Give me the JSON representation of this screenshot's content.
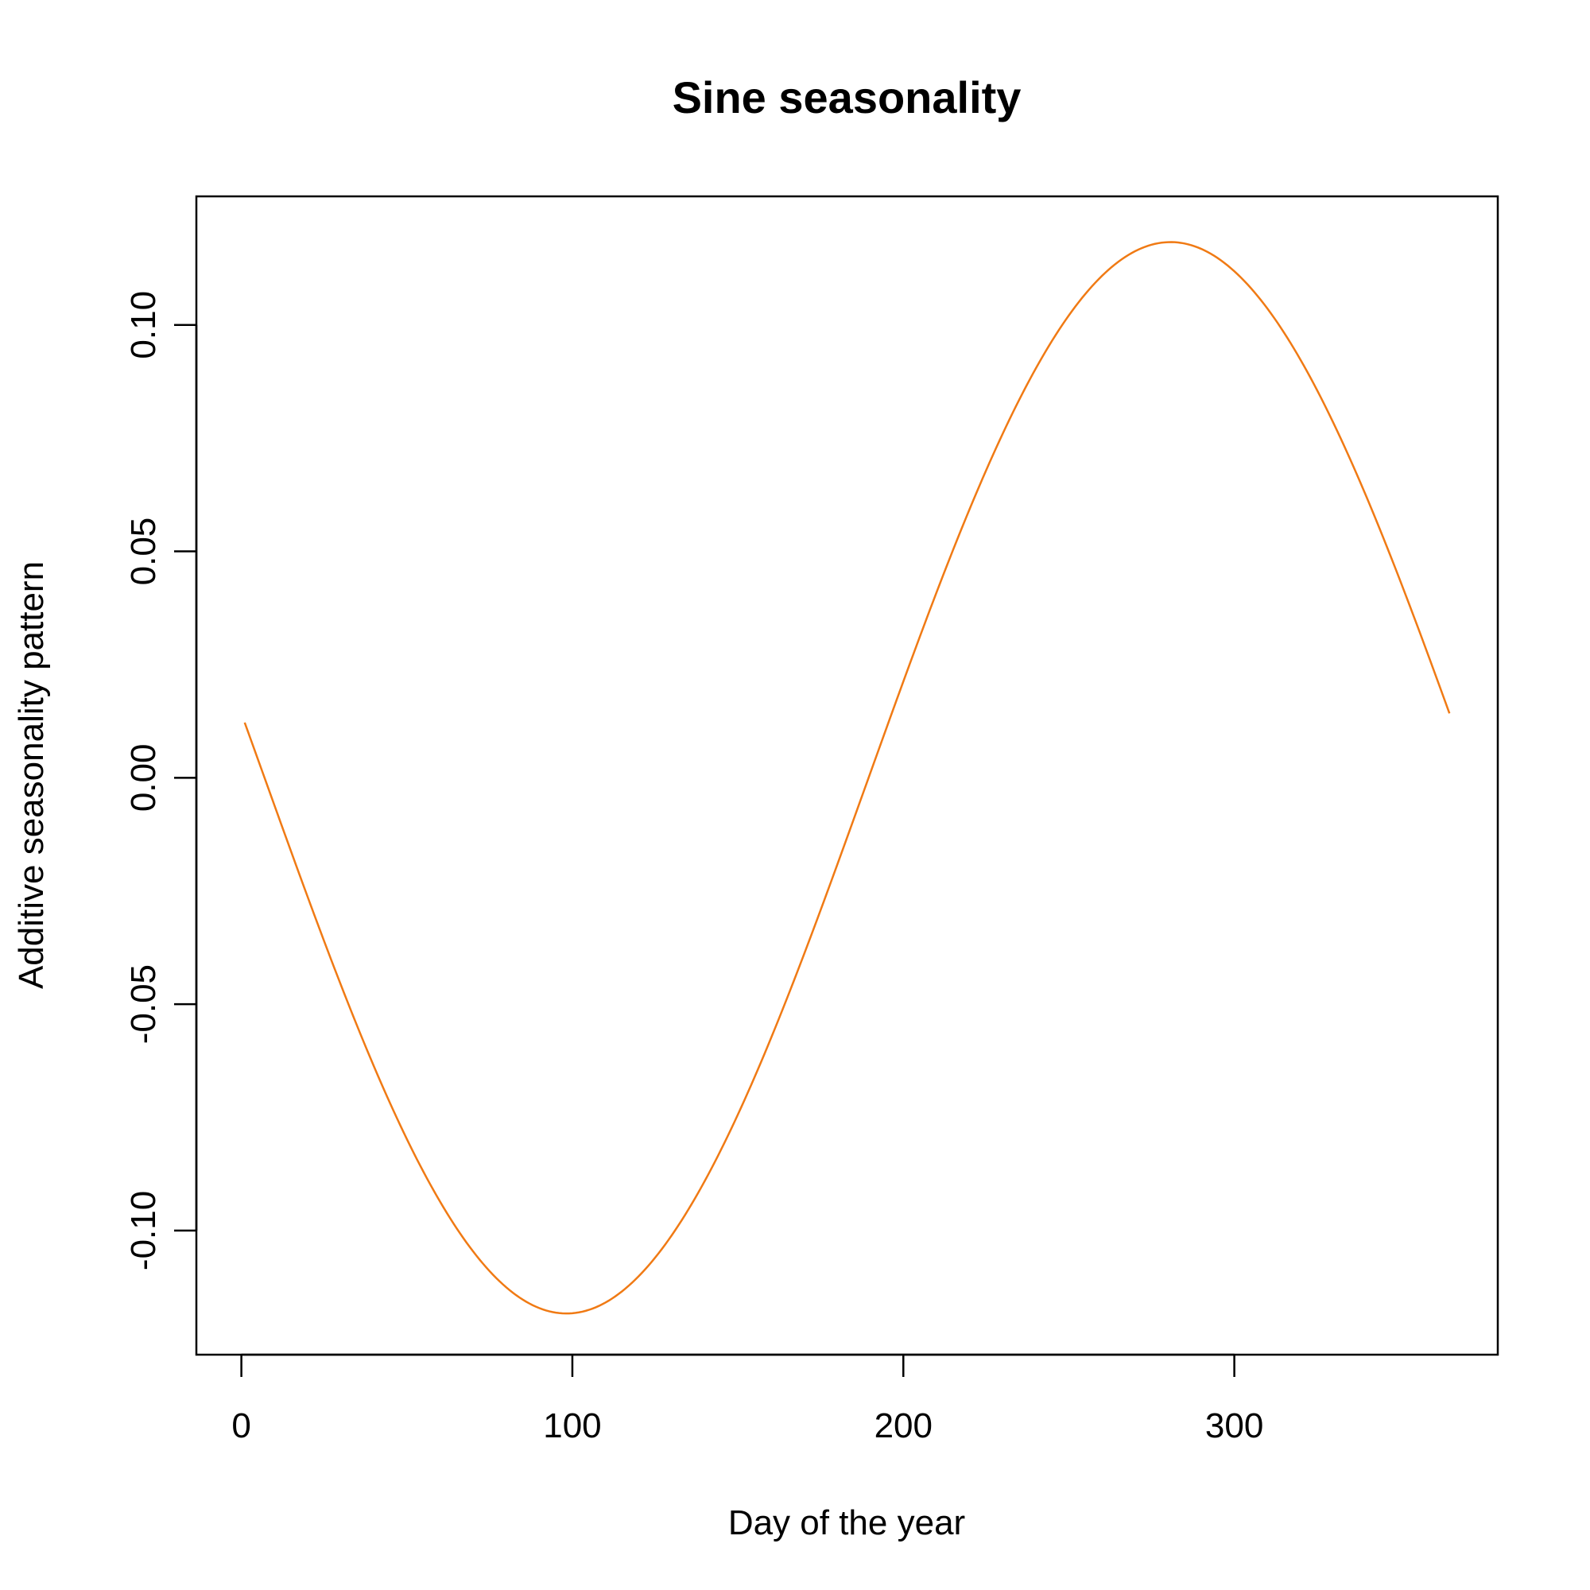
{
  "chart_data": {
    "type": "line",
    "title": "Sine seasonality",
    "xlabel": "Day of the year",
    "ylabel": "Additive seasonality pattern",
    "xlim": [
      -13.6,
      379.6
    ],
    "ylim": [
      -0.1274,
      0.1284
    ],
    "x_ticks": [
      0,
      100,
      200,
      300
    ],
    "x_tick_labels": [
      "0",
      "100",
      "200",
      "300"
    ],
    "y_ticks": [
      -0.1,
      -0.05,
      0.0,
      0.05,
      0.1
    ],
    "y_tick_labels": [
      "-0.10",
      "-0.05",
      "0.00",
      "0.05",
      "0.10"
    ],
    "grid": false,
    "legend": "none",
    "series": [
      {
        "color": "#f07a14",
        "curve": {
          "function": "sine",
          "amplitude": 0.1183,
          "period": 365,
          "phase_day": 189.5,
          "x_start": 1,
          "x_end": 365
        }
      }
    ]
  }
}
